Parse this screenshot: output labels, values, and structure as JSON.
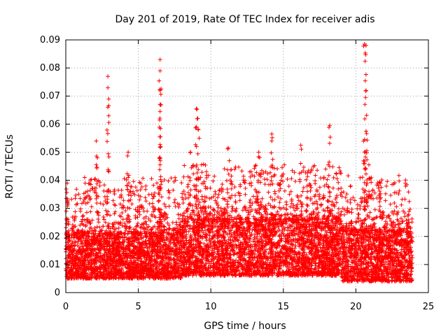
{
  "chart_data": {
    "type": "scatter",
    "title": "Day 201 of 2019, Rate Of TEC Index for receiver adis",
    "xlabel": "GPS time / hours",
    "ylabel": "ROTI / TECUs",
    "xlim": [
      0,
      25
    ],
    "ylim": [
      0,
      0.09
    ],
    "xticks": [
      0,
      5,
      10,
      15,
      20,
      25
    ],
    "yticks": [
      0,
      0.01,
      0.02,
      0.03,
      0.04,
      0.05,
      0.06,
      0.07,
      0.08,
      0.09
    ],
    "xtick_labels": [
      "0",
      "5",
      "10",
      "15",
      "20",
      "25"
    ],
    "ytick_labels": [
      "0",
      "0.01",
      "0.02",
      "0.03",
      "0.04",
      "0.05",
      "0.06",
      "0.07",
      "0.08",
      "0.09"
    ],
    "grid": true,
    "legend": "none",
    "marker": "plus",
    "color": "#ff0000",
    "notable_points": [
      {
        "x": 2.9,
        "y": 0.077
      },
      {
        "x": 2.9,
        "y": 0.073
      },
      {
        "x": 2.9,
        "y": 0.066
      },
      {
        "x": 2.1,
        "y": 0.054
      },
      {
        "x": 2.1,
        "y": 0.0455
      },
      {
        "x": 4.3,
        "y": 0.05
      },
      {
        "x": 4.3,
        "y": 0.041
      },
      {
        "x": 6.5,
        "y": 0.083
      },
      {
        "x": 6.5,
        "y": 0.079
      },
      {
        "x": 6.5,
        "y": 0.072
      },
      {
        "x": 6.5,
        "y": 0.067
      },
      {
        "x": 6.5,
        "y": 0.0645
      },
      {
        "x": 6.5,
        "y": 0.0455
      },
      {
        "x": 9.0,
        "y": 0.0655
      },
      {
        "x": 9.1,
        "y": 0.062
      },
      {
        "x": 9.0,
        "y": 0.059
      },
      {
        "x": 9.2,
        "y": 0.055
      },
      {
        "x": 8.6,
        "y": 0.05
      },
      {
        "x": 11.2,
        "y": 0.0515
      },
      {
        "x": 13.3,
        "y": 0.05
      },
      {
        "x": 14.2,
        "y": 0.0565
      },
      {
        "x": 14.2,
        "y": 0.054
      },
      {
        "x": 16.2,
        "y": 0.0525
      },
      {
        "x": 18.2,
        "y": 0.0595
      },
      {
        "x": 18.1,
        "y": 0.0455
      },
      {
        "x": 20.6,
        "y": 0.0885
      },
      {
        "x": 20.7,
        "y": 0.088
      },
      {
        "x": 20.7,
        "y": 0.072
      },
      {
        "x": 20.7,
        "y": 0.0575
      },
      {
        "x": 20.6,
        "y": 0.0545
      },
      {
        "x": 20.6,
        "y": 0.05
      },
      {
        "x": 20.9,
        "y": 0.0455
      },
      {
        "x": 0.1,
        "y": 0.039
      },
      {
        "x": 1.3,
        "y": 0.041
      },
      {
        "x": 21.7,
        "y": 0.039
      }
    ],
    "bands": [
      {
        "x_range": [
          0,
          8
        ],
        "y_range": [
          0.005,
          0.021
        ]
      },
      {
        "x_range": [
          8,
          19
        ],
        "y_range": [
          0.006,
          0.026
        ]
      },
      {
        "x_range": [
          19,
          23.9
        ],
        "y_range": [
          0.004,
          0.022
        ]
      }
    ]
  }
}
